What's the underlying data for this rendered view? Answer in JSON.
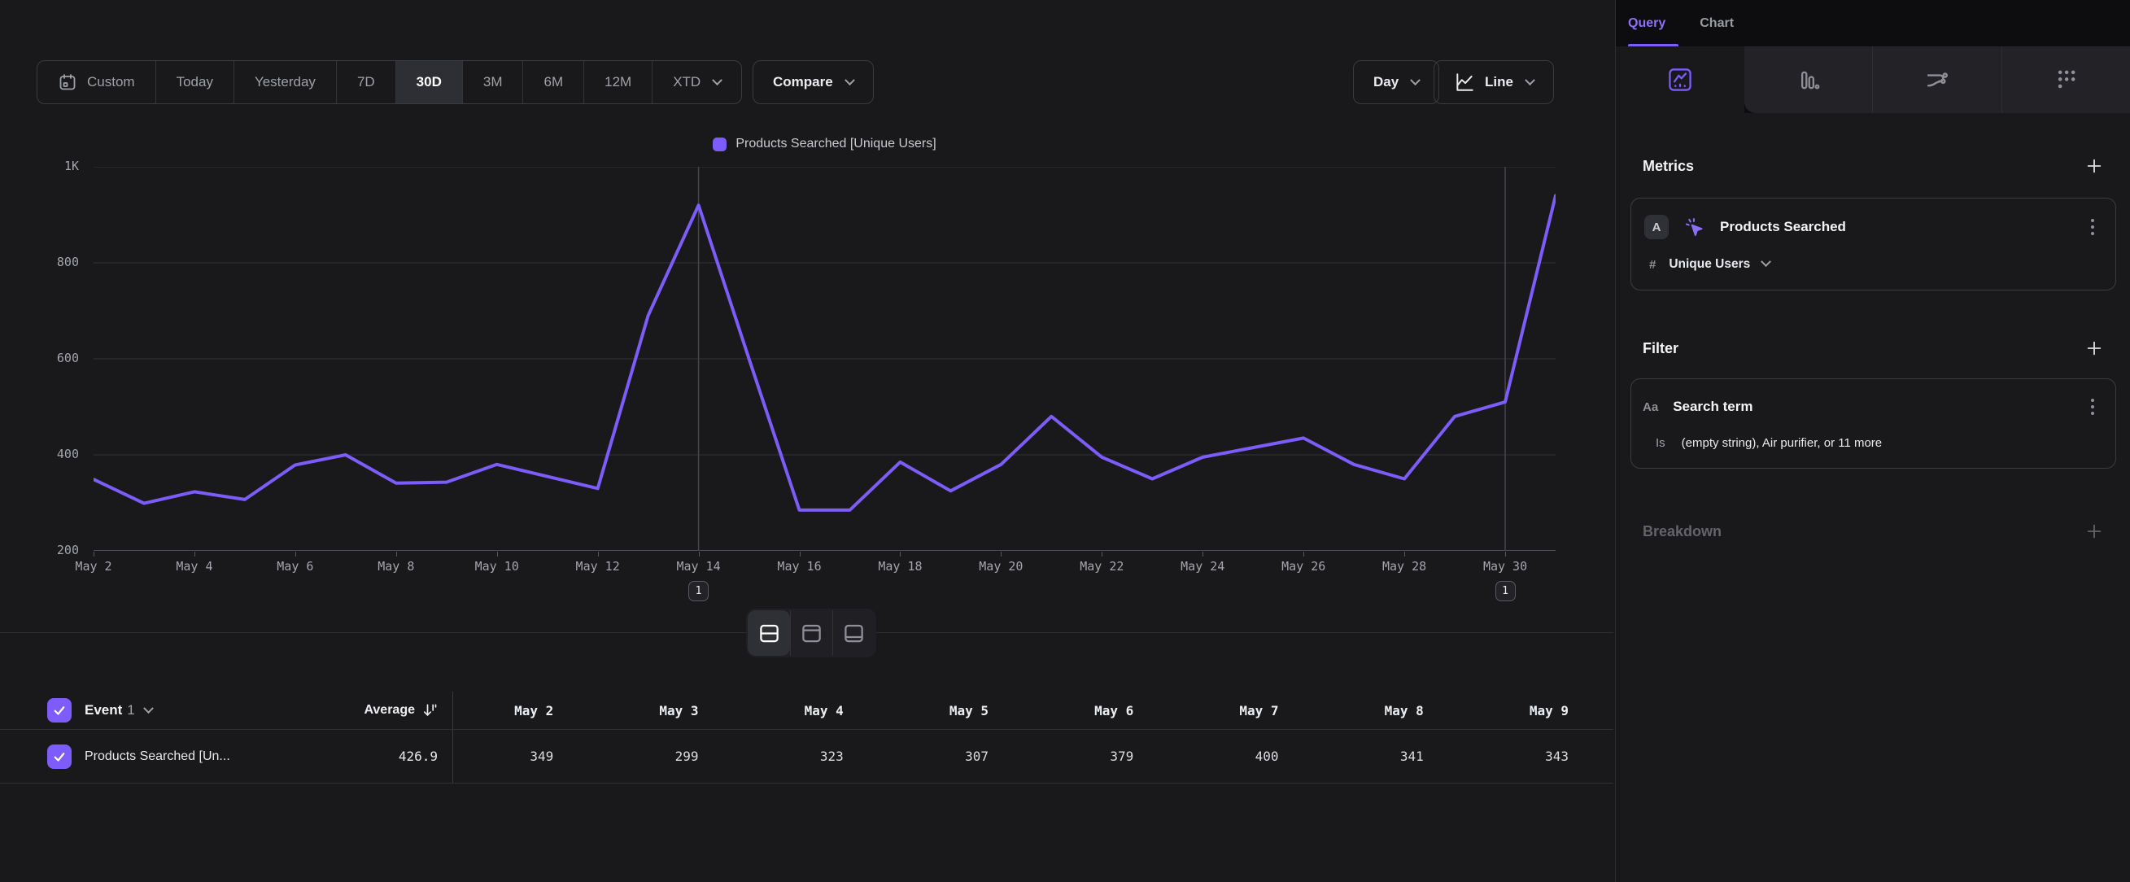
{
  "toolbar": {
    "date_ranges": [
      "Custom",
      "Today",
      "Yesterday",
      "7D",
      "30D",
      "3M",
      "6M",
      "12M",
      "XTD"
    ],
    "selected_range": "30D",
    "compare_label": "Compare",
    "granularity_label": "Day",
    "chart_type_label": "Line"
  },
  "chart_data": {
    "type": "line",
    "x": [
      "May 2",
      "May 3",
      "May 4",
      "May 5",
      "May 6",
      "May 7",
      "May 8",
      "May 9",
      "May 10",
      "May 11",
      "May 12",
      "May 13",
      "May 14",
      "May 15",
      "May 16",
      "May 17",
      "May 18",
      "May 19",
      "May 20",
      "May 21",
      "May 22",
      "May 23",
      "May 24",
      "May 25",
      "May 26",
      "May 27",
      "May 28",
      "May 29",
      "May 30",
      "May 31"
    ],
    "series": [
      {
        "name": "Products Searched [Unique Users]",
        "color": "#7c5cfa",
        "values": [
          349,
          299,
          323,
          307,
          379,
          400,
          341,
          343,
          380,
          355,
          330,
          690,
          920,
          600,
          285,
          285,
          385,
          325,
          380,
          480,
          395,
          350,
          395,
          415,
          435,
          380,
          350,
          480,
          510,
          940
        ]
      }
    ],
    "x_tick_labels": [
      "May 2",
      "May 4",
      "May 6",
      "May 8",
      "May 10",
      "May 12",
      "May 14",
      "May 16",
      "May 18",
      "May 20",
      "May 22",
      "May 24",
      "May 26",
      "May 28",
      "May 30"
    ],
    "y_ticks": [
      "1K",
      "800",
      "600",
      "400",
      "200"
    ],
    "ylim": [
      200,
      1000
    ],
    "grid": true,
    "legend_position": "top-center",
    "annotations": [
      {
        "x": "May 14",
        "label": "1"
      },
      {
        "x": "May 30",
        "label": "1"
      }
    ]
  },
  "table": {
    "event_label": "Event",
    "event_count": "1",
    "average_label": "Average",
    "columns": [
      "May 2",
      "May 3",
      "May 4",
      "May 5",
      "May 6",
      "May 7",
      "May 8",
      "May 9"
    ],
    "rows": [
      {
        "name": "Products Searched [Un...",
        "average": "426.9",
        "values": [
          349,
          299,
          323,
          307,
          379,
          400,
          341,
          343
        ]
      }
    ]
  },
  "sidebar": {
    "tabs": [
      {
        "label": "Query"
      },
      {
        "label": "Chart"
      }
    ],
    "active_tab": "Query",
    "icon_tabs": [
      "insights",
      "bar-chart",
      "flows",
      "more-charts"
    ],
    "metrics": {
      "heading": "Metrics",
      "items": [
        {
          "letter": "A",
          "name": "Products Searched",
          "aggregation_prefix": "#",
          "aggregation": "Unique Users"
        }
      ]
    },
    "filter": {
      "heading": "Filter",
      "items": [
        {
          "type_label": "Aa",
          "name": "Search term",
          "operator": "Is",
          "value": "(empty string), Air purifier, or 11 more"
        }
      ]
    },
    "breakdown": {
      "heading": "Breakdown"
    }
  },
  "colors": {
    "accent": "#7c5cfa",
    "background": "#19191b",
    "grid_line": "#333338",
    "axis_line": "#60606a"
  }
}
